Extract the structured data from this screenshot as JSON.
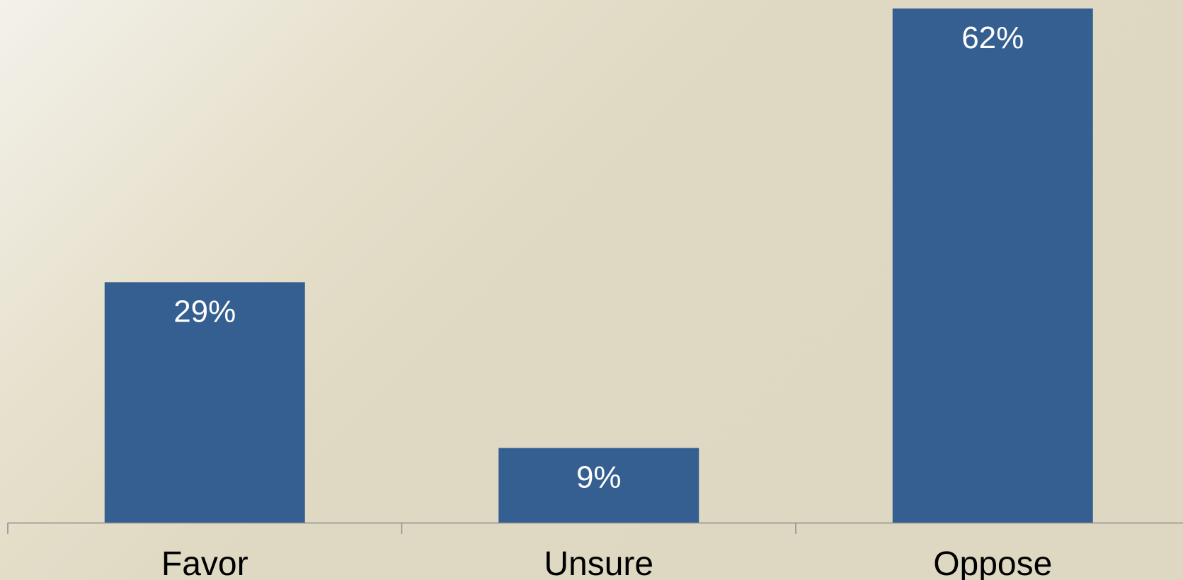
{
  "chart_data": {
    "type": "bar",
    "categories": [
      "Favor",
      "Unsure",
      "Oppose"
    ],
    "values": [
      29,
      9,
      62
    ],
    "data_labels": [
      "29%",
      "9%",
      "62%"
    ],
    "title": "",
    "xlabel": "",
    "ylabel": "",
    "ylim": [
      0,
      62
    ],
    "grid": false,
    "legend": "none",
    "bar_color": "#365f91",
    "axis_color": "#8c8c8c",
    "label_color": "#ffffff",
    "category_color": "#000000"
  }
}
